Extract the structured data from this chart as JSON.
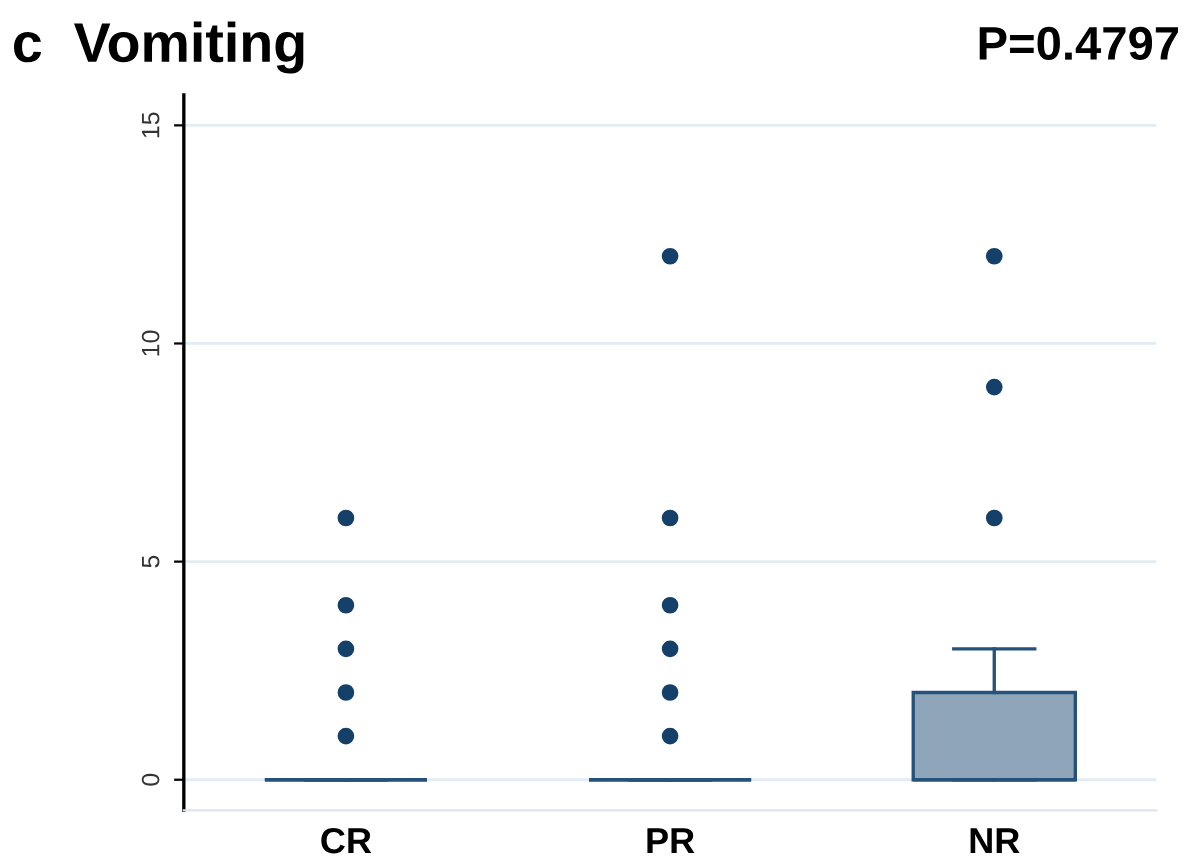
{
  "chart_data": {
    "type": "box",
    "title": "c  Vomiting",
    "annotations": [
      "P=0.4797"
    ],
    "categories": [
      "CR",
      "PR",
      "NR"
    ],
    "boxes": [
      {
        "low": 0,
        "q1": 0,
        "median": 0,
        "q3": 0,
        "high": 0,
        "outliers": [
          1,
          2,
          3,
          4,
          6
        ]
      },
      {
        "low": 0,
        "q1": 0,
        "median": 0,
        "q3": 0,
        "high": 0,
        "outliers": [
          1,
          2,
          3,
          4,
          6,
          12
        ]
      },
      {
        "low": 0,
        "q1": 0,
        "median": 0,
        "q3": 2,
        "high": 3,
        "outliers": [
          6,
          9,
          12
        ]
      }
    ],
    "colors": [
      "#24527a",
      "#24527a",
      "#8fa5b9"
    ],
    "ylim": [
      -0.7,
      15.7
    ],
    "yticks": [
      0,
      5,
      10,
      15
    ],
    "grid": "y",
    "marker": "circle"
  }
}
